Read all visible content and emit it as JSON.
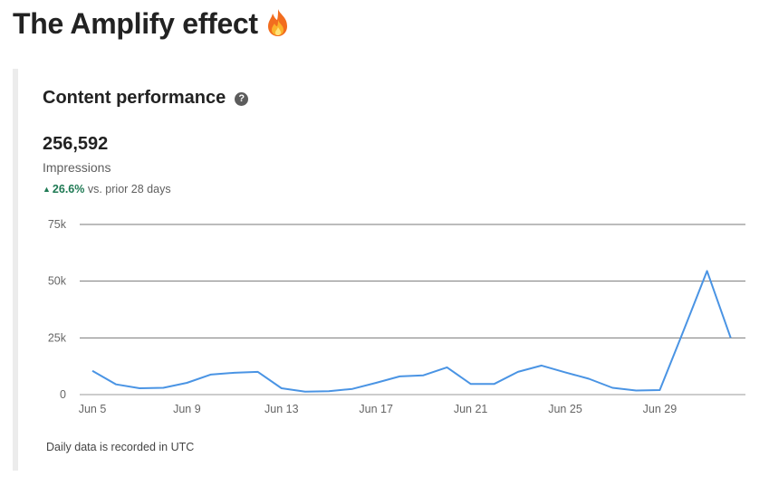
{
  "page": {
    "title": "The Amplify effect",
    "title_icon": "fire-emoji"
  },
  "card": {
    "title": "Content performance",
    "help_icon_glyph": "?",
    "metric_value": "256,592",
    "metric_label": "Impressions",
    "change_value": "26.6%",
    "change_suffix": "vs. prior 28 days",
    "change_color": "#1f7a54",
    "footnote": "Daily data is recorded in UTC"
  },
  "chart_data": {
    "type": "line",
    "x": [
      "Jun 5",
      "Jun 6",
      "Jun 7",
      "Jun 8",
      "Jun 9",
      "Jun 10",
      "Jun 11",
      "Jun 12",
      "Jun 13",
      "Jun 14",
      "Jun 15",
      "Jun 16",
      "Jun 17",
      "Jun 18",
      "Jun 19",
      "Jun 20",
      "Jun 21",
      "Jun 22",
      "Jun 23",
      "Jun 24",
      "Jun 25",
      "Jun 26",
      "Jun 27",
      "Jun 28",
      "Jun 29",
      "Jun 30",
      "Jul 1",
      "Jul 2"
    ],
    "series": [
      {
        "values": [
          10500,
          4500,
          2800,
          3000,
          5200,
          8800,
          9600,
          10000,
          2800,
          1300,
          1500,
          2500,
          5200,
          8000,
          8500,
          12000,
          4700,
          4700,
          10000,
          12800,
          9800,
          7000,
          3000,
          1800,
          2000,
          28000,
          54500,
          25000
        ],
        "color": "#4a94e4"
      }
    ],
    "x_tick_labels": [
      "Jun 5",
      "Jun 9",
      "Jun 13",
      "Jun 17",
      "Jun 21",
      "Jun 25",
      "Jun 29"
    ],
    "y_ticks": [
      0,
      25000,
      50000,
      75000
    ],
    "y_tick_labels": [
      "0",
      "25k",
      "50k",
      "75k"
    ],
    "ylim": [
      0,
      75000
    ],
    "grid": true,
    "title": "",
    "xlabel": "",
    "ylabel": ""
  }
}
